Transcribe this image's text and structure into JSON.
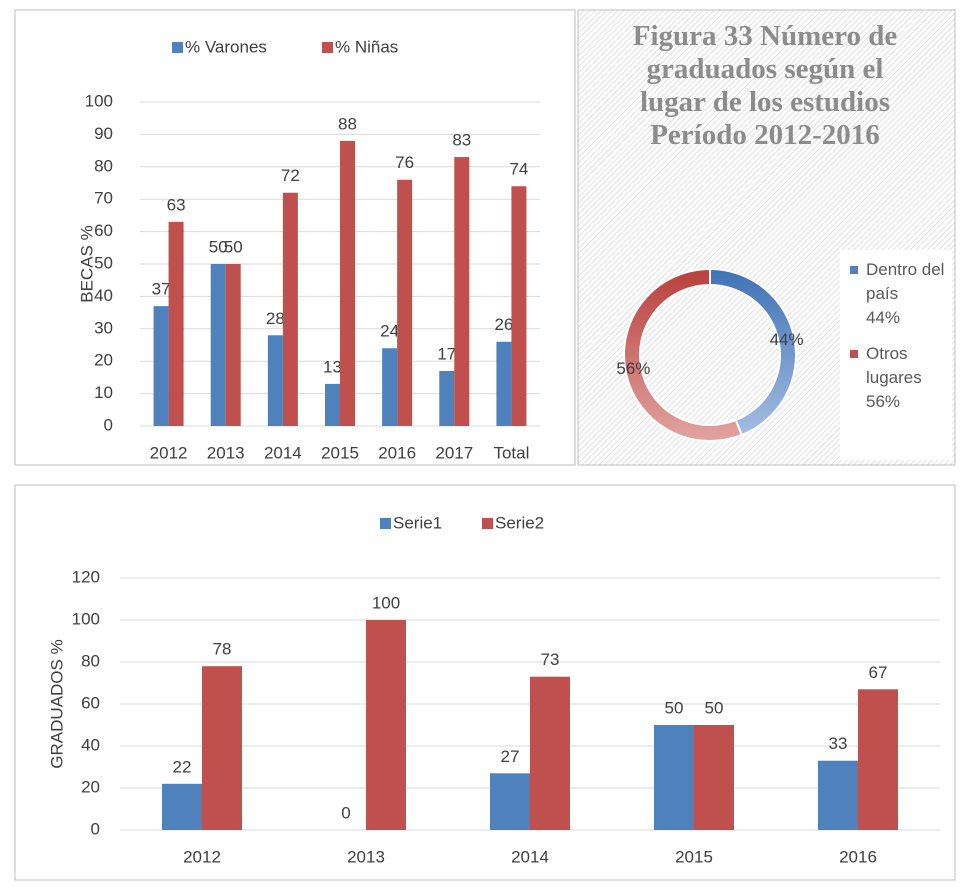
{
  "chart_data": [
    {
      "type": "bar",
      "categories": [
        "2012",
        "2013",
        "2014",
        "2015",
        "2016",
        "2017",
        "Total"
      ],
      "series": [
        {
          "name": "% Varones",
          "color": "#4f81bd",
          "values": [
            37,
            50,
            28,
            13,
            24,
            17,
            26
          ]
        },
        {
          "name": "% Niñas",
          "color": "#c0504d",
          "values": [
            63,
            50,
            72,
            88,
            76,
            83,
            74
          ]
        }
      ],
      "ylabel": "BECAS %",
      "ylim": [
        0,
        100
      ],
      "yticks": [
        0,
        10,
        20,
        30,
        40,
        50,
        60,
        70,
        80,
        90,
        100
      ],
      "grid": true,
      "legend": "top"
    },
    {
      "type": "donut",
      "title": "Figura 33 Número de graduados según el lugar de los estudios Período 2012-2016",
      "categories": [
        "Dentro del país",
        "Otros lugares"
      ],
      "values": [
        44,
        56
      ],
      "value_labels": [
        "44%",
        "56%"
      ],
      "colors": [
        "#4f81bd",
        "#c0504d"
      ],
      "legend": "right"
    },
    {
      "type": "bar",
      "categories": [
        "2012",
        "2013",
        "2014",
        "2015",
        "2016"
      ],
      "series": [
        {
          "name": "Serie1",
          "color": "#4f81bd",
          "values": [
            22,
            0,
            27,
            50,
            33
          ]
        },
        {
          "name": "Serie2",
          "color": "#c0504d",
          "values": [
            78,
            100,
            73,
            50,
            67
          ]
        }
      ],
      "ylabel": "GRADUADOS %",
      "ylim": [
        0,
        120
      ],
      "yticks": [
        0,
        20,
        40,
        60,
        80,
        100,
        120
      ],
      "grid": true,
      "legend": "top"
    }
  ]
}
